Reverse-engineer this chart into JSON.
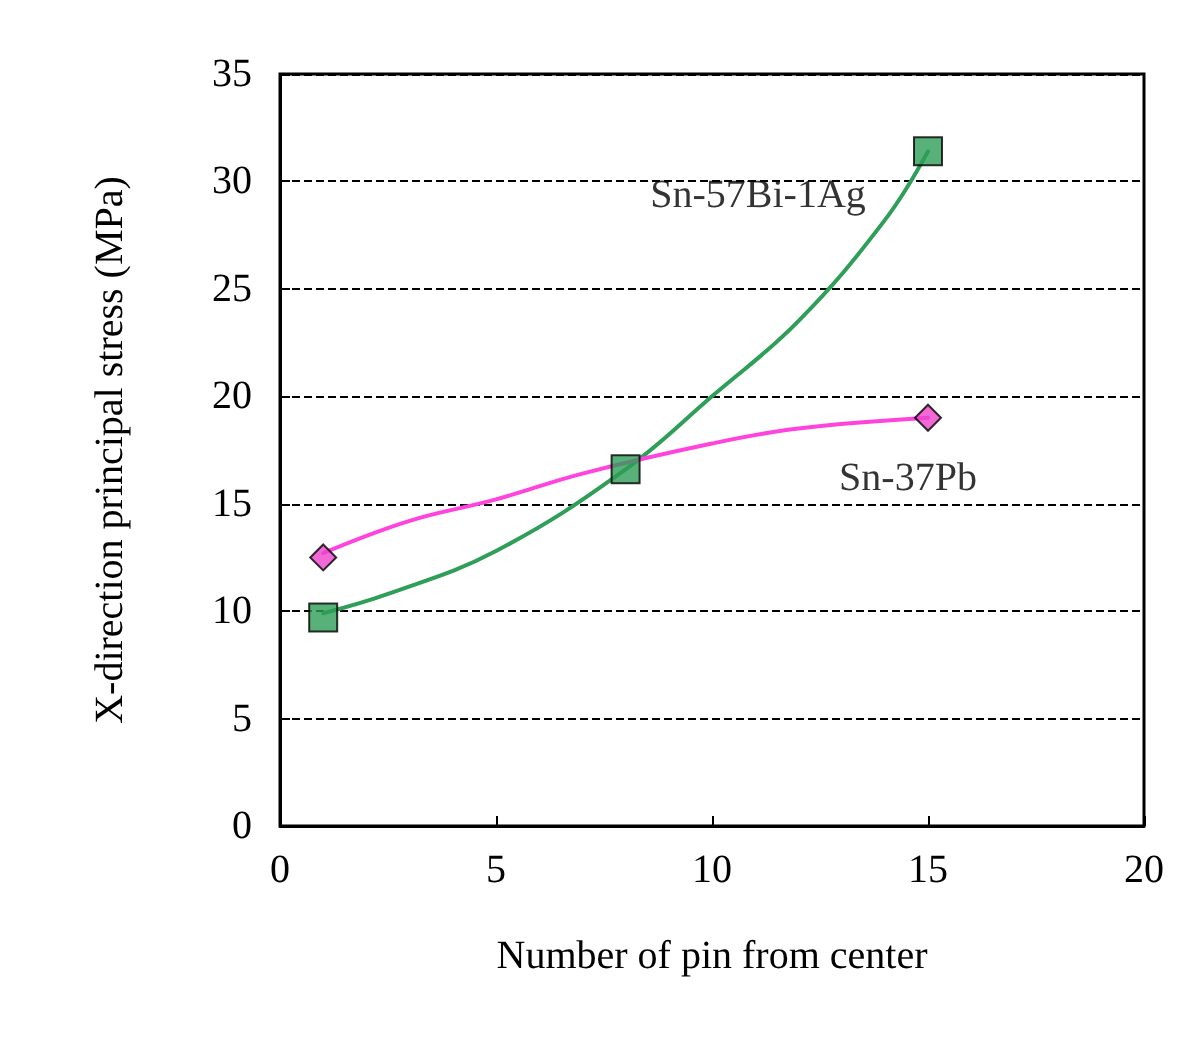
{
  "chart_data": {
    "type": "scatter",
    "xlabel": "Number of pin from center",
    "ylabel": "X-direction principal stress (MPa)",
    "xlim": [
      0,
      20
    ],
    "xticks": [
      0,
      5,
      10,
      15,
      20
    ],
    "ylim": [
      0,
      35
    ],
    "yticks": [
      0,
      5,
      10,
      15,
      20,
      25,
      30,
      35
    ],
    "grid": "y",
    "series": [
      {
        "name": "Sn-57Bi-1Ag",
        "marker": "square",
        "color": "#2e9e58",
        "x": [
          1,
          8,
          15
        ],
        "values": [
          9.7,
          16.6,
          31.4
        ]
      },
      {
        "name": "Sn-37Pb",
        "marker": "diamond",
        "color": "#ee44cc",
        "x": [
          1,
          15
        ],
        "values": [
          12.5,
          19.0
        ]
      },
      {
        "type": "line",
        "marker": "none",
        "color": "#2e9e58",
        "x": [
          1,
          2.5,
          5,
          8,
          10,
          12,
          14,
          15
        ],
        "values": [
          9.9,
          10.8,
          12.8,
          16.6,
          20,
          23.5,
          28.2,
          31.4
        ]
      },
      {
        "type": "line",
        "marker": "none",
        "color": "#ff44dd",
        "x": [
          1,
          3,
          5,
          7,
          10,
          12,
          15
        ],
        "values": [
          12.7,
          14.2,
          15.2,
          16.4,
          17.8,
          18.5,
          19.0
        ]
      }
    ]
  }
}
